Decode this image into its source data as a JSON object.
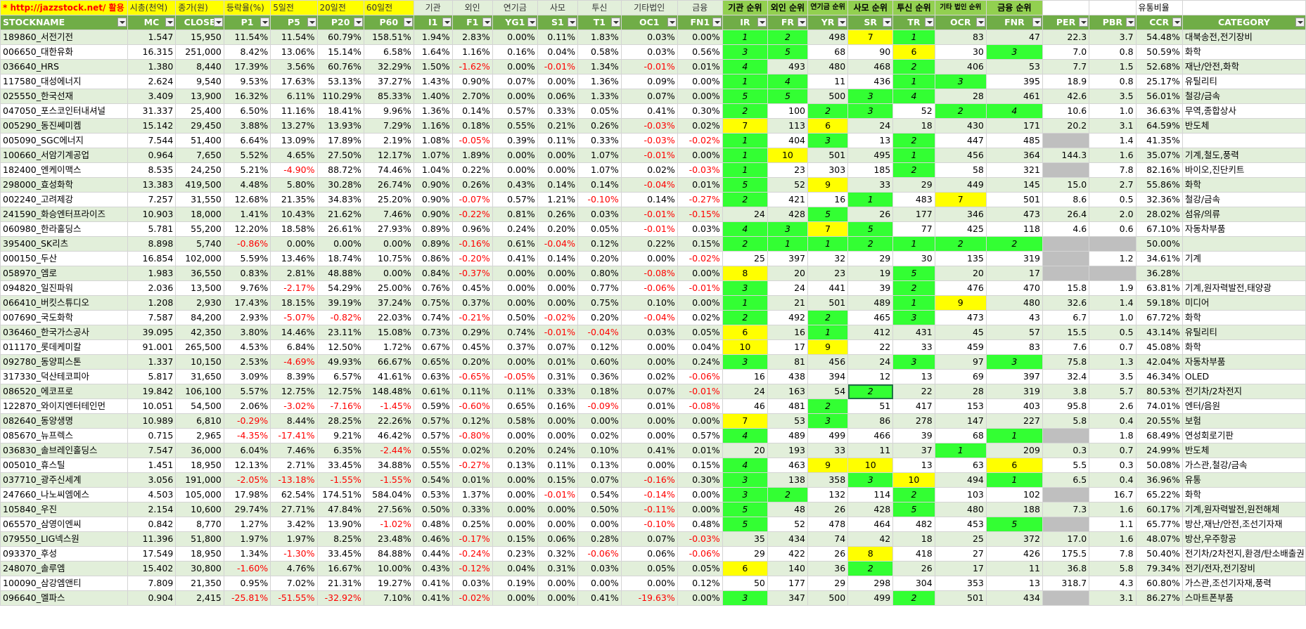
{
  "top_header": [
    "* http://jazzstock.net/ 활용",
    "시총(천억)",
    "종가(원)",
    "등락율(%)",
    "5일전",
    "20일전",
    "60일전",
    "기관",
    "외인",
    "연기금",
    "사모",
    "투신",
    "기타법인",
    "금융",
    "기관 순위",
    "외인 순위",
    "연기금 순위",
    "사모 순위",
    "투신 순위",
    "기타 법인 순위",
    "금융 순위",
    "",
    "",
    "",
    "유통비율",
    ""
  ],
  "col_header": [
    "STOCKNAME",
    "MC",
    "CLOSE",
    "P1",
    "P5",
    "P20",
    "P60",
    "I1",
    "F1",
    "YG1",
    "S1",
    "T1",
    "OC1",
    "FN1",
    "IR",
    "FR",
    "YR",
    "SR",
    "TR",
    "OCR",
    "FNR",
    "PER",
    "PBR",
    "CCR",
    "CATEGORY"
  ],
  "rows": [
    [
      "189860_서전기전",
      "1.547",
      "15,950",
      "11.54%",
      "11.54%",
      "60.79%",
      "158.51%",
      "1.94%",
      "2.83%",
      "0.00%",
      "0.11%",
      "1.83%",
      "0.03%",
      "0.00%",
      "1",
      "2",
      "498",
      "7",
      "1",
      "83",
      "47",
      "22.3",
      "3.7",
      "54.48%",
      "대북송전,전기장비"
    ],
    [
      "006650_대한유화",
      "16.315",
      "251,000",
      "8.42%",
      "13.06%",
      "15.14%",
      "6.58%",
      "1.64%",
      "1.16%",
      "0.16%",
      "0.04%",
      "0.58%",
      "0.03%",
      "0.56%",
      "3",
      "5",
      "68",
      "90",
      "6",
      "30",
      "3",
      "7.0",
      "0.8",
      "50.59%",
      "화학"
    ],
    [
      "036640_HRS",
      "1.380",
      "8,440",
      "17.39%",
      "3.56%",
      "60.76%",
      "32.29%",
      "1.50%",
      "-1.62%",
      "0.00%",
      "-0.01%",
      "1.34%",
      "-0.01%",
      "0.01%",
      "4",
      "493",
      "480",
      "468",
      "2",
      "406",
      "53",
      "7.7",
      "1.5",
      "52.68%",
      "재난/안전,화학"
    ],
    [
      "117580_대성에너지",
      "2.624",
      "9,540",
      "9.53%",
      "17.63%",
      "53.13%",
      "37.27%",
      "1.43%",
      "0.90%",
      "0.07%",
      "0.00%",
      "1.36%",
      "0.09%",
      "0.00%",
      "1",
      "4",
      "11",
      "436",
      "1",
      "3",
      "395",
      "18.9",
      "0.8",
      "25.17%",
      "유틸리티"
    ],
    [
      "025550_한국선재",
      "3.409",
      "13,900",
      "16.32%",
      "6.11%",
      "110.29%",
      "85.33%",
      "1.40%",
      "2.70%",
      "0.00%",
      "0.06%",
      "1.33%",
      "0.07%",
      "0.00%",
      "5",
      "5",
      "500",
      "3",
      "4",
      "28",
      "461",
      "42.6",
      "3.5",
      "56.01%",
      "철강/금속"
    ],
    [
      "047050_포스코인터내셔널",
      "31.337",
      "25,400",
      "6.50%",
      "11.16%",
      "18.41%",
      "9.96%",
      "1.36%",
      "0.14%",
      "0.57%",
      "0.33%",
      "0.05%",
      "0.41%",
      "0.30%",
      "2",
      "100",
      "2",
      "3",
      "52",
      "2",
      "4",
      "10.6",
      "1.0",
      "36.63%",
      "무역,종합상사"
    ],
    [
      "005290_동진쎄미켐",
      "15.142",
      "29,450",
      "3.88%",
      "13.27%",
      "13.93%",
      "7.29%",
      "1.16%",
      "0.18%",
      "0.55%",
      "0.21%",
      "0.26%",
      "-0.03%",
      "0.02%",
      "7",
      "113",
      "6",
      "24",
      "18",
      "430",
      "171",
      "20.2",
      "3.1",
      "64.59%",
      "반도체"
    ],
    [
      "005090_SGC에너지",
      "7.544",
      "51,400",
      "6.64%",
      "13.09%",
      "17.89%",
      "2.19%",
      "1.08%",
      "-0.05%",
      "0.39%",
      "0.11%",
      "0.33%",
      "-0.03%",
      "-0.02%",
      "1",
      "404",
      "3",
      "13",
      "2",
      "447",
      "485",
      "",
      "1.4",
      "41.35%",
      ""
    ],
    [
      "100660_서암기계공업",
      "0.964",
      "7,650",
      "5.52%",
      "4.65%",
      "27.50%",
      "12.17%",
      "1.07%",
      "1.89%",
      "0.00%",
      "0.00%",
      "1.07%",
      "-0.01%",
      "0.00%",
      "1",
      "10",
      "501",
      "495",
      "1",
      "456",
      "364",
      "144.3",
      "1.6",
      "35.07%",
      "기계,철도,풍력"
    ],
    [
      "182400_엔케이맥스",
      "8.535",
      "24,250",
      "5.21%",
      "-4.90%",
      "88.72%",
      "74.46%",
      "1.04%",
      "0.22%",
      "0.00%",
      "0.00%",
      "1.07%",
      "0.02%",
      "-0.03%",
      "1",
      "23",
      "303",
      "185",
      "2",
      "58",
      "321",
      "",
      "7.8",
      "82.16%",
      "바이오,진단키트"
    ],
    [
      "298000_효성화학",
      "13.383",
      "419,500",
      "4.48%",
      "5.80%",
      "30.28%",
      "26.74%",
      "0.90%",
      "0.26%",
      "0.43%",
      "0.14%",
      "0.14%",
      "-0.04%",
      "0.01%",
      "5",
      "52",
      "9",
      "33",
      "29",
      "449",
      "145",
      "15.0",
      "2.7",
      "55.86%",
      "화학"
    ],
    [
      "002240_고려제강",
      "7.257",
      "31,550",
      "12.68%",
      "21.35%",
      "34.83%",
      "25.20%",
      "0.90%",
      "-0.07%",
      "0.57%",
      "1.21%",
      "-0.10%",
      "0.14%",
      "-0.27%",
      "2",
      "421",
      "16",
      "1",
      "483",
      "7",
      "501",
      "8.6",
      "0.5",
      "32.36%",
      "철강/금속"
    ],
    [
      "241590_화승엔터프라이즈",
      "10.903",
      "18,000",
      "1.41%",
      "10.43%",
      "21.62%",
      "7.46%",
      "0.90%",
      "-0.22%",
      "0.81%",
      "0.26%",
      "0.03%",
      "-0.01%",
      "-0.15%",
      "24",
      "428",
      "5",
      "26",
      "177",
      "346",
      "473",
      "26.4",
      "2.0",
      "28.02%",
      "섬유/의류"
    ],
    [
      "060980_한라홀딩스",
      "5.781",
      "55,200",
      "12.20%",
      "18.58%",
      "26.61%",
      "27.93%",
      "0.89%",
      "0.96%",
      "0.24%",
      "0.20%",
      "0.05%",
      "-0.01%",
      "0.03%",
      "4",
      "3",
      "7",
      "5",
      "77",
      "425",
      "118",
      "4.6",
      "0.6",
      "67.10%",
      "자동차부품"
    ],
    [
      "395400_SK리츠",
      "8.898",
      "5,740",
      "-0.86%",
      "0.00%",
      "0.00%",
      "0.00%",
      "0.89%",
      "-0.16%",
      "0.61%",
      "-0.04%",
      "0.12%",
      "0.22%",
      "0.15%",
      "2",
      "1",
      "1",
      "2",
      "1",
      "2",
      "2",
      "",
      "",
      "50.00%",
      ""
    ],
    [
      "000150_두산",
      "16.854",
      "102,000",
      "5.59%",
      "13.46%",
      "18.74%",
      "10.75%",
      "0.86%",
      "-0.20%",
      "0.41%",
      "0.14%",
      "0.20%",
      "0.00%",
      "-0.02%",
      "25",
      "397",
      "32",
      "29",
      "30",
      "135",
      "319",
      "",
      "1.2",
      "34.61%",
      "기계"
    ],
    [
      "058970_엠로",
      "1.983",
      "36,550",
      "0.83%",
      "2.81%",
      "48.88%",
      "0.00%",
      "0.84%",
      "-0.37%",
      "0.00%",
      "0.00%",
      "0.80%",
      "-0.08%",
      "0.00%",
      "8",
      "20",
      "23",
      "19",
      "5",
      "20",
      "17",
      "",
      "",
      "36.28%",
      ""
    ],
    [
      "094820_일진파워",
      "2.036",
      "13,500",
      "9.76%",
      "-2.17%",
      "54.29%",
      "25.00%",
      "0.76%",
      "0.45%",
      "0.00%",
      "0.00%",
      "0.77%",
      "-0.06%",
      "-0.01%",
      "3",
      "24",
      "441",
      "39",
      "2",
      "476",
      "470",
      "15.8",
      "1.9",
      "63.81%",
      "기계,원자력발전,태양광"
    ],
    [
      "066410_버킷스튜디오",
      "1.208",
      "2,930",
      "17.43%",
      "18.15%",
      "39.19%",
      "37.24%",
      "0.75%",
      "0.37%",
      "0.00%",
      "0.00%",
      "0.75%",
      "0.10%",
      "0.00%",
      "1",
      "21",
      "501",
      "489",
      "1",
      "9",
      "480",
      "32.6",
      "1.4",
      "59.18%",
      "미디어"
    ],
    [
      "007690_국도화학",
      "7.587",
      "84,200",
      "2.93%",
      "-5.07%",
      "-0.82%",
      "22.03%",
      "0.74%",
      "-0.21%",
      "0.50%",
      "-0.02%",
      "0.20%",
      "-0.04%",
      "0.02%",
      "2",
      "492",
      "2",
      "465",
      "3",
      "473",
      "43",
      "6.7",
      "1.0",
      "67.72%",
      "화학"
    ],
    [
      "036460_한국가스공사",
      "39.095",
      "42,350",
      "3.80%",
      "14.46%",
      "23.11%",
      "15.08%",
      "0.73%",
      "0.29%",
      "0.74%",
      "-0.01%",
      "-0.04%",
      "0.03%",
      "0.05%",
      "6",
      "16",
      "1",
      "412",
      "431",
      "45",
      "57",
      "15.5",
      "0.5",
      "43.14%",
      "유틸리티"
    ],
    [
      "011170_롯데케미칼",
      "91.001",
      "265,500",
      "4.53%",
      "6.84%",
      "12.50%",
      "1.72%",
      "0.67%",
      "0.45%",
      "0.37%",
      "0.07%",
      "0.12%",
      "0.00%",
      "0.04%",
      "10",
      "17",
      "9",
      "22",
      "33",
      "459",
      "83",
      "7.6",
      "0.7",
      "45.08%",
      "화학"
    ],
    [
      "092780_동양피스톤",
      "1.337",
      "10,150",
      "2.53%",
      "-4.69%",
      "49.93%",
      "66.67%",
      "0.65%",
      "0.20%",
      "0.00%",
      "0.01%",
      "0.60%",
      "0.00%",
      "0.24%",
      "3",
      "81",
      "456",
      "24",
      "3",
      "97",
      "3",
      "75.8",
      "1.3",
      "42.04%",
      "자동차부품"
    ],
    [
      "317330_덕산테코피아",
      "5.817",
      "31,650",
      "3.09%",
      "8.39%",
      "6.57%",
      "41.61%",
      "0.63%",
      "-0.65%",
      "-0.05%",
      "0.31%",
      "0.36%",
      "0.02%",
      "-0.06%",
      "16",
      "438",
      "394",
      "12",
      "13",
      "69",
      "397",
      "32.4",
      "3.5",
      "46.34%",
      "OLED"
    ],
    [
      "086520_에코프로",
      "19.842",
      "106,100",
      "5.57%",
      "12.75%",
      "12.75%",
      "148.48%",
      "0.61%",
      "0.11%",
      "0.11%",
      "0.33%",
      "0.18%",
      "0.07%",
      "-0.01%",
      "24",
      "163",
      "54",
      "2",
      "22",
      "28",
      "319",
      "3.8",
      "5.7",
      "80.53%",
      "전기차/2차전지"
    ],
    [
      "122870_와이지엔터테인먼",
      "10.051",
      "54,500",
      "2.06%",
      "-3.02%",
      "-7.16%",
      "-1.45%",
      "0.59%",
      "-0.60%",
      "0.65%",
      "0.16%",
      "-0.09%",
      "0.01%",
      "-0.08%",
      "46",
      "481",
      "2",
      "51",
      "417",
      "153",
      "403",
      "95.8",
      "2.6",
      "74.01%",
      "엔터/음원"
    ],
    [
      "082640_동양생명",
      "10.989",
      "6,810",
      "-0.29%",
      "8.44%",
      "28.25%",
      "22.26%",
      "0.57%",
      "0.12%",
      "0.58%",
      "0.00%",
      "0.00%",
      "0.00%",
      "0.00%",
      "7",
      "53",
      "3",
      "86",
      "278",
      "147",
      "227",
      "5.8",
      "0.4",
      "20.55%",
      "보험"
    ],
    [
      "085670_뉴프렉스",
      "0.715",
      "2,965",
      "-4.35%",
      "-17.41%",
      "9.21%",
      "46.42%",
      "0.57%",
      "-0.80%",
      "0.00%",
      "0.00%",
      "0.02%",
      "0.00%",
      "0.57%",
      "4",
      "489",
      "499",
      "466",
      "39",
      "68",
      "1",
      "",
      "1.8",
      "68.49%",
      "연성회로기판"
    ],
    [
      "036830_솔브레인홀딩스",
      "7.547",
      "36,000",
      "6.04%",
      "7.46%",
      "6.35%",
      "-2.44%",
      "0.55%",
      "0.02%",
      "0.20%",
      "0.24%",
      "0.10%",
      "0.41%",
      "0.01%",
      "20",
      "193",
      "33",
      "11",
      "37",
      "1",
      "209",
      "0.3",
      "0.7",
      "24.99%",
      "반도체"
    ],
    [
      "005010_휴스틸",
      "1.451",
      "18,950",
      "12.13%",
      "2.71%",
      "33.45%",
      "34.88%",
      "0.55%",
      "-0.27%",
      "0.13%",
      "0.11%",
      "0.13%",
      "0.00%",
      "0.15%",
      "4",
      "463",
      "9",
      "10",
      "13",
      "63",
      "6",
      "5.5",
      "0.3",
      "50.08%",
      "가스관,철강/금속"
    ],
    [
      "037710_광주신세계",
      "3.056",
      "191,000",
      "-2.05%",
      "-13.18%",
      "-1.55%",
      "-1.55%",
      "0.54%",
      "0.01%",
      "0.00%",
      "0.15%",
      "0.07%",
      "-0.16%",
      "0.30%",
      "3",
      "138",
      "358",
      "3",
      "10",
      "494",
      "1",
      "6.5",
      "0.4",
      "36.96%",
      "유통"
    ],
    [
      "247660_나노씨엠에스",
      "4.503",
      "105,000",
      "17.98%",
      "62.54%",
      "174.51%",
      "584.04%",
      "0.53%",
      "1.37%",
      "0.00%",
      "-0.01%",
      "0.54%",
      "-0.14%",
      "0.00%",
      "3",
      "2",
      "132",
      "114",
      "2",
      "103",
      "102",
      "",
      "16.7",
      "65.22%",
      "화학"
    ],
    [
      "105840_우진",
      "2.154",
      "10,600",
      "29.74%",
      "27.71%",
      "47.84%",
      "27.56%",
      "0.50%",
      "0.33%",
      "0.00%",
      "0.00%",
      "0.50%",
      "-0.11%",
      "0.00%",
      "5",
      "48",
      "26",
      "428",
      "5",
      "480",
      "188",
      "7.3",
      "1.6",
      "60.17%",
      "기계,원자력발전,원전해체"
    ],
    [
      "065570_삼영이엔씨",
      "0.842",
      "8,770",
      "1.27%",
      "3.42%",
      "13.90%",
      "-1.02%",
      "0.48%",
      "0.25%",
      "0.00%",
      "0.00%",
      "0.00%",
      "-0.10%",
      "0.48%",
      "5",
      "52",
      "478",
      "464",
      "482",
      "453",
      "5",
      "",
      "1.1",
      "65.77%",
      "방산,재난/안전,조선기자재"
    ],
    [
      "079550_LIG넥스원",
      "11.396",
      "51,800",
      "1.97%",
      "1.97%",
      "8.25%",
      "23.48%",
      "0.46%",
      "-0.17%",
      "0.15%",
      "0.06%",
      "0.28%",
      "0.07%",
      "-0.03%",
      "35",
      "434",
      "74",
      "42",
      "18",
      "25",
      "372",
      "17.0",
      "1.6",
      "48.07%",
      "방산,우주항공"
    ],
    [
      "093370_후성",
      "17.549",
      "18,950",
      "1.34%",
      "-1.30%",
      "33.45%",
      "84.88%",
      "0.44%",
      "-0.24%",
      "0.23%",
      "0.32%",
      "-0.06%",
      "0.06%",
      "-0.06%",
      "29",
      "422",
      "26",
      "8",
      "418",
      "27",
      "426",
      "175.5",
      "7.8",
      "50.40%",
      "전기차/2차전지,환경/탄소배출권"
    ],
    [
      "248070_솔루엠",
      "15.402",
      "30,800",
      "-1.60%",
      "4.76%",
      "16.67%",
      "10.00%",
      "0.43%",
      "-0.12%",
      "0.04%",
      "0.31%",
      "0.03%",
      "0.05%",
      "0.05%",
      "6",
      "140",
      "36",
      "2",
      "26",
      "17",
      "11",
      "36.8",
      "5.8",
      "79.34%",
      "전기/전자,전기장비"
    ],
    [
      "100090_삼강엠앤티",
      "7.809",
      "21,350",
      "0.95%",
      "7.02%",
      "21.31%",
      "19.27%",
      "0.41%",
      "0.03%",
      "0.19%",
      "0.00%",
      "0.00%",
      "0.00%",
      "0.12%",
      "50",
      "177",
      "29",
      "298",
      "304",
      "353",
      "13",
      "318.7",
      "4.3",
      "60.80%",
      "가스관,조선기자재,풍력"
    ],
    [
      "096640_멜파스",
      "0.904",
      "2,415",
      "-25.81%",
      "-51.55%",
      "-32.92%",
      "7.10%",
      "0.41%",
      "-0.02%",
      "0.00%",
      "0.00%",
      "0.41%",
      "-19.63%",
      "0.00%",
      "3",
      "347",
      "500",
      "499",
      "2",
      "501",
      "434",
      "",
      "3.1",
      "86.27%",
      "스마트폰부품"
    ]
  ],
  "highlights": {
    "0": {
      "14": "g",
      "15": "g",
      "17": "y",
      "18": "g"
    },
    "1": {
      "14": "g",
      "15": "g",
      "18": "y",
      "20": "g"
    },
    "2": {
      "14": "g",
      "18": "g"
    },
    "3": {
      "14": "g",
      "15": "g",
      "18": "g",
      "19": "g"
    },
    "4": {
      "14": "g",
      "15": "g",
      "17": "g",
      "18": "g"
    },
    "5": {
      "14": "g",
      "16": "g",
      "17": "g",
      "19": "g",
      "20": "g"
    },
    "6": {
      "14": "y",
      "16": "y"
    },
    "7": {
      "14": "g",
      "16": "g",
      "18": "g",
      "21": "gray"
    },
    "8": {
      "14": "g",
      "15": "y",
      "18": "g"
    },
    "9": {
      "14": "g",
      "18": "g",
      "21": "gray"
    },
    "10": {
      "14": "g",
      "16": "y"
    },
    "11": {
      "14": "g",
      "17": "g",
      "19": "y"
    },
    "12": {
      "16": "g"
    },
    "13": {
      "14": "g",
      "15": "g",
      "16": "y",
      "17": "g"
    },
    "14": {
      "14": "g",
      "15": "g",
      "16": "g",
      "17": "g",
      "18": "g",
      "19": "g",
      "20": "g",
      "21": "gray",
      "22": "gray"
    },
    "15": {
      "21": "gray"
    },
    "16": {
      "14": "y",
      "18": "g",
      "21": "gray",
      "22": "gray"
    },
    "17": {
      "14": "g",
      "18": "g"
    },
    "18": {
      "14": "g",
      "18": "g",
      "19": "y"
    },
    "19": {
      "14": "g",
      "16": "g",
      "18": "g"
    },
    "20": {
      "14": "y",
      "16": "g"
    },
    "21": {
      "14": "y",
      "16": "y"
    },
    "22": {
      "14": "g",
      "18": "g",
      "20": "g"
    },
    "24": {
      "17": "g"
    },
    "25": {
      "16": "g"
    },
    "26": {
      "14": "y",
      "16": "g"
    },
    "27": {
      "14": "g",
      "20": "g",
      "21": "gray"
    },
    "28": {
      "19": "g"
    },
    "29": {
      "14": "g",
      "16": "y",
      "17": "y",
      "20": "y"
    },
    "30": {
      "14": "g",
      "17": "g",
      "18": "y",
      "20": "g"
    },
    "31": {
      "14": "g",
      "15": "g",
      "18": "g",
      "21": "gray"
    },
    "32": {
      "14": "g",
      "18": "g"
    },
    "33": {
      "14": "g",
      "20": "g",
      "21": "gray"
    },
    "35": {
      "17": "y"
    },
    "36": {
      "14": "y",
      "17": "g"
    },
    "38": {
      "14": "g",
      "18": "g",
      "21": "gray"
    }
  },
  "selected_cell": {
    "row": 24,
    "col": 17
  }
}
